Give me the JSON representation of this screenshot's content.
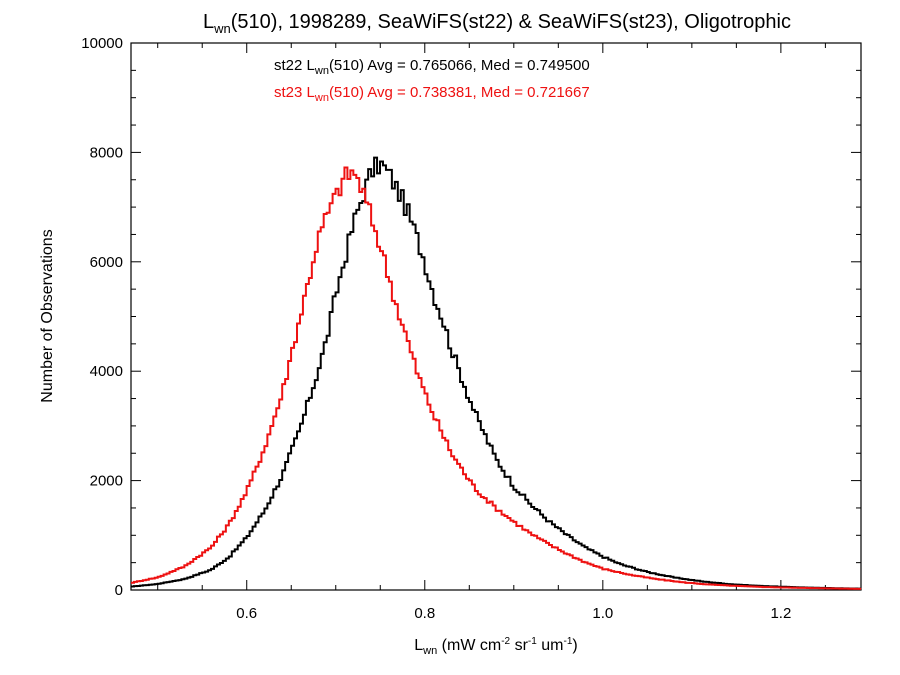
{
  "chart_data": {
    "type": "line",
    "title": {
      "prefix": "L",
      "sub": "wn",
      "suffix": "(510), 1998289, SeaWiFS(st22) & SeaWiFS(st23), Oligotrophic"
    },
    "xlabel": {
      "prefix": "L",
      "sub": "wn",
      "p1": " (mW cm",
      "sup1": "-2",
      "p2": " sr",
      "sup2": "-1",
      "p3": " um",
      "sup3": "-1",
      "p4": ")"
    },
    "ylabel": "Number of Observations",
    "xlim": [
      0.47,
      1.29
    ],
    "ylim": [
      0,
      10000
    ],
    "x_ticks": [
      0.6,
      0.8,
      1.0,
      1.2
    ],
    "x_tick_labels": [
      "0.6",
      "0.8",
      "1.0",
      "1.2"
    ],
    "y_ticks": [
      0,
      2000,
      4000,
      6000,
      8000,
      10000
    ],
    "y_tick_labels": [
      "0",
      "2000",
      "4000",
      "6000",
      "8000",
      "10000"
    ],
    "grid": false,
    "annotations": [
      {
        "color": "#000000",
        "pre": "st22 L",
        "sub": "wn",
        "post": "(510) Avg = 0.765066, Med = 0.749500"
      },
      {
        "color": "#ee1111",
        "pre": "st23 L",
        "sub": "wn",
        "post": "(510) Avg = 0.738381, Med = 0.721667"
      }
    ],
    "series": [
      {
        "color": "#000000",
        "points": [
          [
            0.47,
            60
          ],
          [
            0.5,
            110
          ],
          [
            0.53,
            200
          ],
          [
            0.56,
            370
          ],
          [
            0.58,
            600
          ],
          [
            0.6,
            960
          ],
          [
            0.62,
            1450
          ],
          [
            0.64,
            2100
          ],
          [
            0.66,
            2950
          ],
          [
            0.68,
            4000
          ],
          [
            0.69,
            4600
          ],
          [
            0.7,
            5400
          ],
          [
            0.71,
            6050
          ],
          [
            0.72,
            6700
          ],
          [
            0.73,
            7200
          ],
          [
            0.74,
            7650
          ],
          [
            0.75,
            7800
          ],
          [
            0.76,
            7600
          ],
          [
            0.77,
            7300
          ],
          [
            0.78,
            6950
          ],
          [
            0.79,
            6500
          ],
          [
            0.8,
            6000
          ],
          [
            0.81,
            5400
          ],
          [
            0.82,
            4950
          ],
          [
            0.83,
            4400
          ],
          [
            0.84,
            3950
          ],
          [
            0.85,
            3500
          ],
          [
            0.86,
            3100
          ],
          [
            0.87,
            2750
          ],
          [
            0.88,
            2400
          ],
          [
            0.89,
            2150
          ],
          [
            0.9,
            1900
          ],
          [
            0.92,
            1550
          ],
          [
            0.94,
            1250
          ],
          [
            0.96,
            1000
          ],
          [
            0.98,
            780
          ],
          [
            1.0,
            610
          ],
          [
            1.02,
            470
          ],
          [
            1.05,
            330
          ],
          [
            1.08,
            230
          ],
          [
            1.11,
            160
          ],
          [
            1.14,
            110
          ],
          [
            1.17,
            80
          ],
          [
            1.2,
            60
          ],
          [
            1.24,
            40
          ],
          [
            1.29,
            25
          ]
        ]
      },
      {
        "color": "#ee1111",
        "points": [
          [
            0.47,
            130
          ],
          [
            0.5,
            230
          ],
          [
            0.53,
            430
          ],
          [
            0.56,
            780
          ],
          [
            0.58,
            1200
          ],
          [
            0.6,
            1800
          ],
          [
            0.62,
            2600
          ],
          [
            0.64,
            3600
          ],
          [
            0.65,
            4300
          ],
          [
            0.66,
            5000
          ],
          [
            0.67,
            5700
          ],
          [
            0.68,
            6400
          ],
          [
            0.69,
            6850
          ],
          [
            0.7,
            7200
          ],
          [
            0.71,
            7550
          ],
          [
            0.72,
            7650
          ],
          [
            0.73,
            7300
          ],
          [
            0.74,
            6800
          ],
          [
            0.75,
            6300
          ],
          [
            0.76,
            5700
          ],
          [
            0.77,
            5100
          ],
          [
            0.78,
            4600
          ],
          [
            0.79,
            4050
          ],
          [
            0.8,
            3600
          ],
          [
            0.81,
            3200
          ],
          [
            0.82,
            2850
          ],
          [
            0.83,
            2500
          ],
          [
            0.84,
            2250
          ],
          [
            0.85,
            2000
          ],
          [
            0.86,
            1800
          ],
          [
            0.88,
            1500
          ],
          [
            0.9,
            1250
          ],
          [
            0.92,
            1020
          ],
          [
            0.94,
            830
          ],
          [
            0.96,
            660
          ],
          [
            0.98,
            510
          ],
          [
            1.0,
            390
          ],
          [
            1.03,
            280
          ],
          [
            1.06,
            200
          ],
          [
            1.09,
            140
          ],
          [
            1.12,
            100
          ],
          [
            1.15,
            75
          ],
          [
            1.18,
            55
          ],
          [
            1.22,
            40
          ],
          [
            1.26,
            28
          ],
          [
            1.29,
            20
          ]
        ]
      }
    ]
  }
}
